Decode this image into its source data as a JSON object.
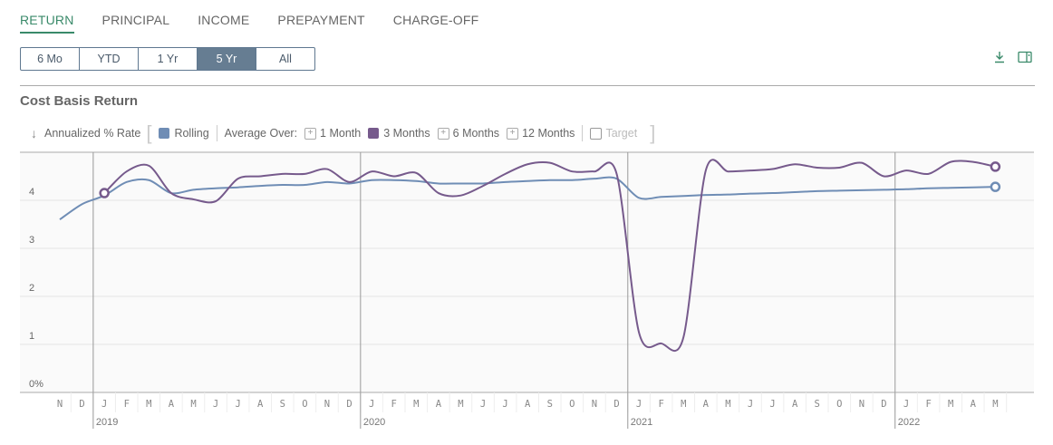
{
  "tabs": [
    {
      "label": "RETURN",
      "active": true
    },
    {
      "label": "PRINCIPAL"
    },
    {
      "label": "INCOME"
    },
    {
      "label": "PREPAYMENT"
    },
    {
      "label": "CHARGE-OFF"
    }
  ],
  "ranges": [
    {
      "label": "6 Mo"
    },
    {
      "label": "YTD"
    },
    {
      "label": "1 Yr"
    },
    {
      "label": "5 Yr",
      "active": true
    },
    {
      "label": "All"
    }
  ],
  "toolbar": {
    "download_icon": "download-icon",
    "panel_icon": "panel-toggle-icon"
  },
  "legend": {
    "sort_icon": "sort-arrow-icon",
    "metric": "Annualized % Rate",
    "rolling": "Rolling",
    "average_over": "Average Over:",
    "m1": "1 Month",
    "m3": "3 Months",
    "m6": "6 Months",
    "m12": "12 Months",
    "target": "Target"
  },
  "colors": {
    "rolling": "#6f8db5",
    "three_months": "#765a8c",
    "accent": "#3a8a6a"
  },
  "chart_data": {
    "type": "line",
    "title": "Cost Basis Return",
    "ylabel": "Annualized % Rate",
    "ylim": [
      0,
      5
    ],
    "yticks": [
      "0%",
      "1",
      "2",
      "3",
      "4"
    ],
    "grid": true,
    "months": [
      "N",
      "D",
      "J",
      "F",
      "M",
      "A",
      "M",
      "J",
      "J",
      "A",
      "S",
      "O",
      "N",
      "D",
      "J",
      "F",
      "M",
      "A",
      "M",
      "J",
      "J",
      "A",
      "S",
      "O",
      "N",
      "D",
      "J",
      "F",
      "M",
      "A",
      "M",
      "J",
      "J",
      "A",
      "S",
      "O",
      "N",
      "D",
      "J",
      "F",
      "M",
      "A",
      "M"
    ],
    "years": [
      {
        "label": "2019",
        "start_index": 2
      },
      {
        "label": "2020",
        "start_index": 14
      },
      {
        "label": "2021",
        "start_index": 26
      },
      {
        "label": "2022",
        "start_index": 38
      }
    ],
    "series": [
      {
        "name": "Rolling",
        "color": "#6f8db5",
        "start_index": 0,
        "values": [
          3.6,
          3.92,
          4.1,
          4.38,
          4.42,
          4.15,
          4.22,
          4.25,
          4.27,
          4.3,
          4.32,
          4.32,
          4.38,
          4.35,
          4.42,
          4.42,
          4.4,
          4.35,
          4.35,
          4.35,
          4.38,
          4.4,
          4.42,
          4.42,
          4.45,
          4.45,
          4.05,
          4.07,
          4.09,
          4.11,
          4.12,
          4.14,
          4.15,
          4.17,
          4.19,
          4.2,
          4.21,
          4.22,
          4.23,
          4.25,
          4.26,
          4.27,
          4.28
        ]
      },
      {
        "name": "3 Months",
        "color": "#765a8c",
        "start_index": 2,
        "values": [
          4.15,
          4.6,
          4.72,
          4.15,
          4.02,
          3.98,
          4.45,
          4.5,
          4.55,
          4.55,
          4.65,
          4.38,
          4.6,
          4.5,
          4.57,
          4.15,
          4.1,
          4.3,
          4.55,
          4.75,
          4.78,
          4.6,
          4.6,
          4.55,
          1.25,
          1.02,
          1.15,
          4.62,
          4.6,
          4.62,
          4.65,
          4.75,
          4.68,
          4.68,
          4.78,
          4.5,
          4.62,
          4.55,
          4.8,
          4.8,
          4.7
        ]
      }
    ]
  }
}
